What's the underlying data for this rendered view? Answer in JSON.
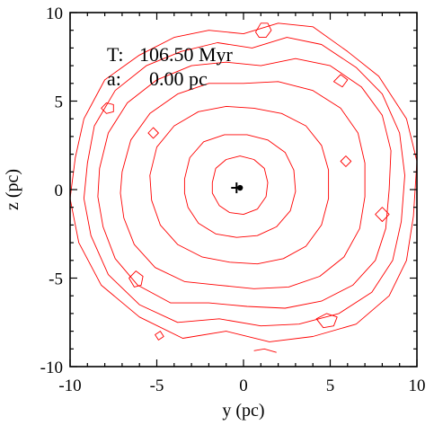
{
  "chart_data": {
    "type": "contour",
    "title": "",
    "xlabel": "y (pc)",
    "ylabel": "z (pc)",
    "xlim": [
      -10,
      10
    ],
    "ylim": [
      -10,
      10
    ],
    "xticks": [
      -10,
      -5,
      0,
      5,
      10
    ],
    "yticks": [
      -10,
      -5,
      0,
      5,
      10
    ],
    "xtick_labels": [
      "-10",
      "-5",
      "0",
      "5",
      "10"
    ],
    "ytick_labels": [
      "-10",
      "-5",
      "0",
      "5",
      "10"
    ],
    "grid": false,
    "legend": "none",
    "contour_color": "#ff0000",
    "annotations": {
      "time_label": "T:",
      "time_value": "106.50 Myr",
      "a_label": "a:",
      "a_value": "0.00 pc"
    },
    "markers": [
      {
        "symbol": "plus",
        "x": -0.4,
        "y": 0.1
      },
      {
        "symbol": "dot",
        "x": -0.2,
        "y": 0.1
      }
    ],
    "contours": [
      {
        "level": 1,
        "points": [
          [
            -9.7,
            1.8
          ],
          [
            -9.2,
            4.0
          ],
          [
            -8.0,
            6.2
          ],
          [
            -6.0,
            7.6
          ],
          [
            -4.0,
            8.6
          ],
          [
            -2.0,
            9.0
          ],
          [
            0.0,
            8.8
          ],
          [
            2.0,
            9.4
          ],
          [
            4.0,
            9.2
          ],
          [
            6.0,
            7.8
          ],
          [
            7.8,
            6.4
          ],
          [
            9.4,
            4.0
          ],
          [
            10.0,
            1.6
          ],
          [
            9.8,
            -1.5
          ],
          [
            9.4,
            -4.0
          ],
          [
            8.4,
            -6.0
          ],
          [
            6.5,
            -7.6
          ],
          [
            4.0,
            -8.3
          ],
          [
            1.5,
            -8.6
          ],
          [
            -1.0,
            -8.0
          ],
          [
            -3.5,
            -8.4
          ],
          [
            -6.0,
            -7.2
          ],
          [
            -8.2,
            -5.4
          ],
          [
            -9.5,
            -3.0
          ],
          [
            -10.0,
            -0.5
          ]
        ]
      },
      {
        "level": 2,
        "points": [
          [
            -9.0,
            1.5
          ],
          [
            -8.6,
            3.6
          ],
          [
            -7.4,
            5.6
          ],
          [
            -5.6,
            7.0
          ],
          [
            -3.6,
            7.8
          ],
          [
            -1.5,
            8.3
          ],
          [
            0.5,
            8.0
          ],
          [
            2.5,
            8.6
          ],
          [
            4.5,
            8.2
          ],
          [
            6.5,
            6.9
          ],
          [
            8.0,
            5.4
          ],
          [
            9.0,
            3.2
          ],
          [
            9.3,
            0.8
          ],
          [
            9.1,
            -1.8
          ],
          [
            8.6,
            -4.0
          ],
          [
            7.4,
            -5.8
          ],
          [
            5.5,
            -7.0
          ],
          [
            3.2,
            -7.6
          ],
          [
            1.0,
            -7.7
          ],
          [
            -1.4,
            -7.3
          ],
          [
            -3.8,
            -7.5
          ],
          [
            -6.0,
            -6.5
          ],
          [
            -7.8,
            -4.8
          ],
          [
            -8.8,
            -2.6
          ],
          [
            -9.2,
            -0.5
          ]
        ]
      },
      {
        "level": 3,
        "points": [
          [
            -8.3,
            1.2
          ],
          [
            -7.8,
            3.2
          ],
          [
            -6.7,
            4.9
          ],
          [
            -5.0,
            6.2
          ],
          [
            -3.0,
            7.0
          ],
          [
            -1.0,
            7.2
          ],
          [
            1.0,
            7.0
          ],
          [
            3.0,
            7.4
          ],
          [
            5.0,
            7.0
          ],
          [
            6.8,
            5.8
          ],
          [
            8.0,
            4.2
          ],
          [
            8.5,
            2.2
          ],
          [
            8.4,
            0.0
          ],
          [
            8.2,
            -2.2
          ],
          [
            7.6,
            -4.0
          ],
          [
            6.3,
            -5.4
          ],
          [
            4.5,
            -6.3
          ],
          [
            2.4,
            -6.7
          ],
          [
            0.2,
            -6.6
          ],
          [
            -2.0,
            -6.4
          ],
          [
            -4.2,
            -6.4
          ],
          [
            -6.1,
            -5.4
          ],
          [
            -7.4,
            -3.9
          ],
          [
            -8.1,
            -2.1
          ],
          [
            -8.4,
            -0.4
          ]
        ]
      },
      {
        "level": 4,
        "points": [
          [
            -7.0,
            1.0
          ],
          [
            -6.5,
            2.8
          ],
          [
            -5.4,
            4.3
          ],
          [
            -3.8,
            5.4
          ],
          [
            -2.0,
            6.0
          ],
          [
            0.0,
            6.0
          ],
          [
            2.0,
            6.1
          ],
          [
            4.0,
            5.6
          ],
          [
            5.6,
            4.6
          ],
          [
            6.6,
            3.2
          ],
          [
            7.0,
            1.5
          ],
          [
            7.0,
            -0.4
          ],
          [
            6.7,
            -2.2
          ],
          [
            5.8,
            -3.8
          ],
          [
            4.4,
            -4.9
          ],
          [
            2.6,
            -5.5
          ],
          [
            0.6,
            -5.6
          ],
          [
            -1.4,
            -5.4
          ],
          [
            -3.4,
            -5.2
          ],
          [
            -5.1,
            -4.4
          ],
          [
            -6.3,
            -3.1
          ],
          [
            -6.9,
            -1.6
          ],
          [
            -7.1,
            -0.2
          ]
        ]
      },
      {
        "level": 5,
        "points": [
          [
            -5.4,
            0.8
          ],
          [
            -5.0,
            2.4
          ],
          [
            -4.0,
            3.6
          ],
          [
            -2.6,
            4.4
          ],
          [
            -1.0,
            4.7
          ],
          [
            0.6,
            4.6
          ],
          [
            2.2,
            4.3
          ],
          [
            3.6,
            3.6
          ],
          [
            4.5,
            2.5
          ],
          [
            4.9,
            1.1
          ],
          [
            4.9,
            -0.5
          ],
          [
            4.5,
            -2.0
          ],
          [
            3.6,
            -3.2
          ],
          [
            2.3,
            -3.9
          ],
          [
            0.8,
            -4.2
          ],
          [
            -0.8,
            -4.1
          ],
          [
            -2.4,
            -3.8
          ],
          [
            -3.8,
            -3.1
          ],
          [
            -4.8,
            -2.0
          ],
          [
            -5.3,
            -0.6
          ]
        ]
      },
      {
        "level": 6,
        "points": [
          [
            -3.4,
            0.6
          ],
          [
            -3.1,
            1.8
          ],
          [
            -2.3,
            2.7
          ],
          [
            -1.1,
            3.1
          ],
          [
            0.2,
            3.1
          ],
          [
            1.4,
            2.8
          ],
          [
            2.4,
            2.1
          ],
          [
            2.9,
            1.1
          ],
          [
            3.0,
            -0.1
          ],
          [
            2.7,
            -1.2
          ],
          [
            1.9,
            -2.1
          ],
          [
            0.8,
            -2.6
          ],
          [
            -0.4,
            -2.7
          ],
          [
            -1.6,
            -2.5
          ],
          [
            -2.6,
            -1.9
          ],
          [
            -3.2,
            -1.0
          ],
          [
            -3.4,
            -0.2
          ]
        ]
      },
      {
        "level": 7,
        "points": [
          [
            -1.8,
            0.4
          ],
          [
            -1.6,
            1.2
          ],
          [
            -1.0,
            1.7
          ],
          [
            -0.2,
            1.9
          ],
          [
            0.6,
            1.7
          ],
          [
            1.2,
            1.2
          ],
          [
            1.4,
            0.4
          ],
          [
            1.3,
            -0.4
          ],
          [
            0.8,
            -1.1
          ],
          [
            0.0,
            -1.4
          ],
          [
            -0.8,
            -1.3
          ],
          [
            -1.4,
            -0.9
          ],
          [
            -1.8,
            -0.2
          ]
        ]
      },
      {
        "level": 8,
        "points": [
          [
            0.7,
            8.9
          ],
          [
            1.0,
            9.4
          ],
          [
            1.4,
            9.4
          ],
          [
            1.6,
            9.0
          ],
          [
            1.3,
            8.6
          ],
          [
            0.9,
            8.6
          ]
        ]
      },
      {
        "level": 9,
        "points": [
          [
            -8.2,
            4.6
          ],
          [
            -7.9,
            4.9
          ],
          [
            -7.5,
            4.8
          ],
          [
            -7.5,
            4.4
          ],
          [
            -7.9,
            4.3
          ]
        ]
      },
      {
        "level": 10,
        "points": [
          [
            -6.6,
            -5.0
          ],
          [
            -6.2,
            -4.6
          ],
          [
            -5.8,
            -4.9
          ],
          [
            -5.9,
            -5.4
          ],
          [
            -6.3,
            -5.5
          ]
        ]
      },
      {
        "level": 11,
        "points": [
          [
            4.2,
            -7.3
          ],
          [
            4.8,
            -7.0
          ],
          [
            5.4,
            -7.2
          ],
          [
            5.2,
            -7.7
          ],
          [
            4.6,
            -7.8
          ]
        ]
      },
      {
        "level": 12,
        "points": [
          [
            -5.1,
            -8.2
          ],
          [
            -4.8,
            -8.0
          ],
          [
            -4.6,
            -8.3
          ],
          [
            -4.9,
            -8.5
          ]
        ]
      },
      {
        "level": 13,
        "points": [
          [
            5.2,
            6.1
          ],
          [
            5.6,
            6.5
          ],
          [
            6.0,
            6.2
          ],
          [
            5.7,
            5.8
          ]
        ]
      },
      {
        "level": 14,
        "points": [
          [
            7.6,
            -1.4
          ],
          [
            8.0,
            -1.0
          ],
          [
            8.4,
            -1.4
          ],
          [
            8.0,
            -1.8
          ]
        ]
      },
      {
        "level": 15,
        "points": [
          [
            -5.5,
            3.2
          ],
          [
            -5.2,
            3.5
          ],
          [
            -4.9,
            3.2
          ],
          [
            -5.2,
            2.9
          ]
        ]
      },
      {
        "level": 16,
        "points": [
          [
            5.6,
            1.6
          ],
          [
            5.9,
            1.9
          ],
          [
            6.2,
            1.6
          ],
          [
            5.9,
            1.3
          ]
        ]
      }
    ],
    "open_contours": [
      {
        "level": 17,
        "points": [
          [
            0.6,
            -9.1
          ],
          [
            1.2,
            -9.0
          ],
          [
            1.9,
            -9.2
          ]
        ]
      }
    ]
  }
}
